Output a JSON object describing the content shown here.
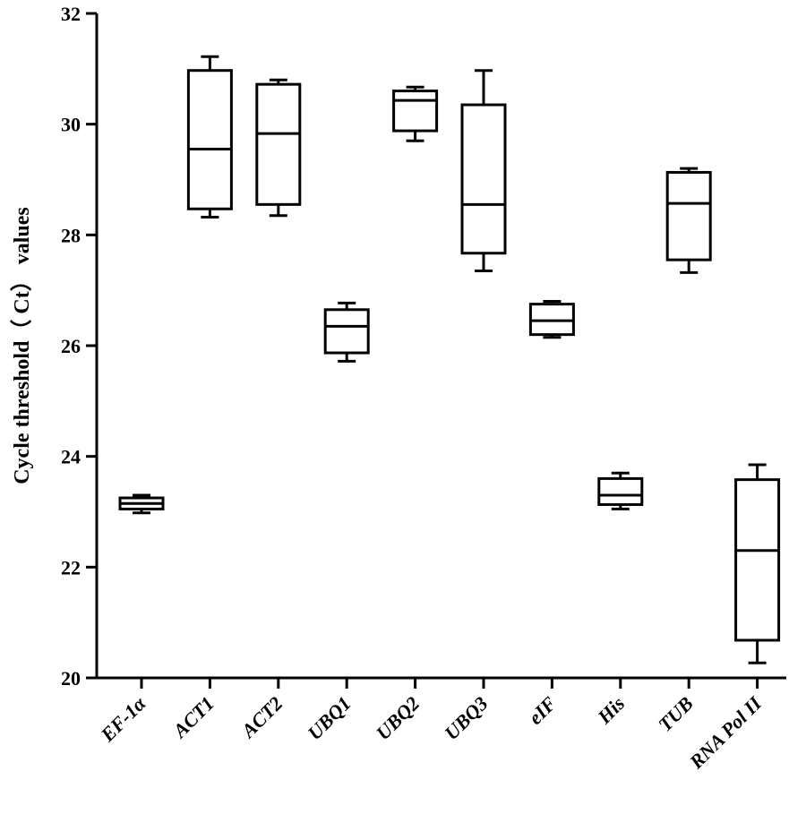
{
  "chart_data": {
    "type": "box",
    "title": "",
    "xlabel": "",
    "ylabel": "Cycle threshold（ Ct） values",
    "ylim": [
      20,
      32
    ],
    "yticks": [
      20,
      22,
      24,
      26,
      28,
      30,
      32
    ],
    "grid": false,
    "legend": "none",
    "categories": [
      "EF-1α",
      "ACT1",
      "ACT2",
      "UBQ1",
      "UBQ2",
      "UBQ3",
      "eIF",
      "His",
      "TUB",
      "RNA Pol II"
    ],
    "boxes": [
      {
        "name": "EF-1α",
        "min": 22.98,
        "q1": 23.05,
        "median": 23.15,
        "q3": 23.25,
        "max": 23.3
      },
      {
        "name": "ACT1",
        "min": 28.32,
        "q1": 28.47,
        "median": 29.55,
        "q3": 30.97,
        "max": 31.22
      },
      {
        "name": "ACT2",
        "min": 28.35,
        "q1": 28.55,
        "median": 29.83,
        "q3": 30.72,
        "max": 30.8
      },
      {
        "name": "UBQ1",
        "min": 25.72,
        "q1": 25.87,
        "median": 26.35,
        "q3": 26.65,
        "max": 26.77
      },
      {
        "name": "UBQ2",
        "min": 29.7,
        "q1": 29.88,
        "median": 30.43,
        "q3": 30.6,
        "max": 30.67
      },
      {
        "name": "UBQ3",
        "min": 27.35,
        "q1": 27.67,
        "median": 28.55,
        "q3": 30.35,
        "max": 30.97
      },
      {
        "name": "eIF",
        "min": 26.15,
        "q1": 26.2,
        "median": 26.45,
        "q3": 26.75,
        "max": 26.8
      },
      {
        "name": "His",
        "min": 23.05,
        "q1": 23.13,
        "median": 23.3,
        "q3": 23.6,
        "max": 23.7
      },
      {
        "name": "TUB",
        "min": 27.32,
        "q1": 27.55,
        "median": 28.57,
        "q3": 29.13,
        "max": 29.2
      },
      {
        "name": "RNA Pol II",
        "min": 20.27,
        "q1": 20.68,
        "median": 22.3,
        "q3": 23.58,
        "max": 23.85
      }
    ]
  }
}
